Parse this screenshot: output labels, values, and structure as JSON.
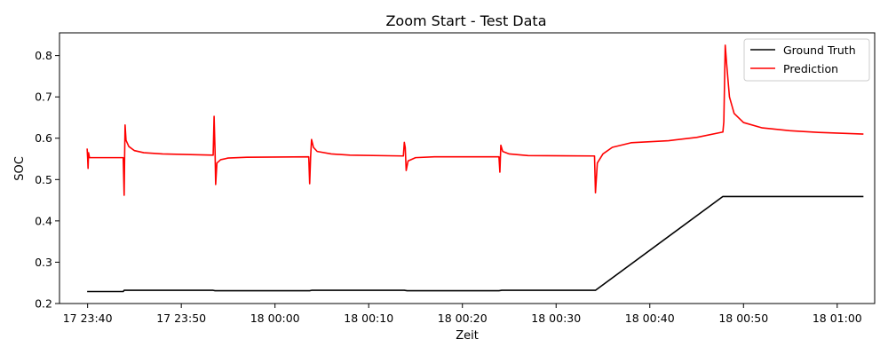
{
  "chart_data": {
    "type": "line",
    "title": "Zoom Start - Test Data",
    "xlabel": "Zeit",
    "ylabel": "SOC",
    "x_is_time": true,
    "xlim": [
      "17 23:37:00",
      "18 01:04:00"
    ],
    "ylim": [
      0.2,
      0.855
    ],
    "x_ticks": [
      "17 23:40",
      "17 23:50",
      "18 00:00",
      "18 00:10",
      "18 00:20",
      "18 00:30",
      "18 00:40",
      "18 00:50",
      "18 01:00"
    ],
    "y_ticks": [
      0.2,
      0.3,
      0.4,
      0.5,
      0.6,
      0.7,
      0.8
    ],
    "grid": false,
    "legend_position": "top-right",
    "series": [
      {
        "name": "Ground Truth",
        "color": "#000000",
        "points": [
          [
            "17 23:39:57",
            0.229
          ],
          [
            "17 23:43:48",
            0.229
          ],
          [
            "17 23:43:54",
            0.232
          ],
          [
            "17 23:53:24",
            0.232
          ],
          [
            "17 23:53:36",
            0.231
          ],
          [
            "18 00:03:42",
            0.231
          ],
          [
            "18 00:03:54",
            0.232
          ],
          [
            "18 00:13:48",
            0.232
          ],
          [
            "18 00:14:06",
            0.231
          ],
          [
            "18 00:23:54",
            0.231
          ],
          [
            "18 00:24:12",
            0.232
          ],
          [
            "18 00:34:12",
            0.232
          ],
          [
            "18 00:47:48",
            0.459
          ],
          [
            "18 01:02:48",
            0.459
          ]
        ]
      },
      {
        "name": "Prediction",
        "color": "#ff0000",
        "points": [
          [
            "17 23:39:57",
            0.575
          ],
          [
            "17 23:40:00",
            0.553
          ],
          [
            "17 23:40:03",
            0.527
          ],
          [
            "17 23:40:06",
            0.565
          ],
          [
            "17 23:40:12",
            0.553
          ],
          [
            "17 23:43:48",
            0.553
          ],
          [
            "17 23:43:54",
            0.462
          ],
          [
            "17 23:43:57",
            0.553
          ],
          [
            "17 23:44:00",
            0.632
          ],
          [
            "17 23:44:06",
            0.595
          ],
          [
            "17 23:44:24",
            0.58
          ],
          [
            "17 23:45:00",
            0.57
          ],
          [
            "17 23:46:00",
            0.565
          ],
          [
            "17 23:48:00",
            0.562
          ],
          [
            "17 23:53:24",
            0.559
          ],
          [
            "17 23:53:30",
            0.653
          ],
          [
            "17 23:53:36",
            0.57
          ],
          [
            "17 23:53:40",
            0.488
          ],
          [
            "17 23:53:48",
            0.54
          ],
          [
            "17 23:54:12",
            0.548
          ],
          [
            "17 23:55:00",
            0.552
          ],
          [
            "17 23:57:00",
            0.554
          ],
          [
            "18 00:03:36",
            0.555
          ],
          [
            "18 00:03:42",
            0.49
          ],
          [
            "18 00:03:48",
            0.555
          ],
          [
            "18 00:03:54",
            0.597
          ],
          [
            "18 00:04:06",
            0.578
          ],
          [
            "18 00:04:30",
            0.568
          ],
          [
            "18 00:06:00",
            0.562
          ],
          [
            "18 00:08:00",
            0.559
          ],
          [
            "18 00:13:42",
            0.557
          ],
          [
            "18 00:13:48",
            0.59
          ],
          [
            "18 00:13:54",
            0.577
          ],
          [
            "18 00:14:00",
            0.522
          ],
          [
            "18 00:14:12",
            0.545
          ],
          [
            "18 00:15:00",
            0.553
          ],
          [
            "18 00:17:00",
            0.555
          ],
          [
            "18 00:23:54",
            0.555
          ],
          [
            "18 00:24:00",
            0.518
          ],
          [
            "18 00:24:06",
            0.583
          ],
          [
            "18 00:24:18",
            0.568
          ],
          [
            "18 00:25:00",
            0.562
          ],
          [
            "18 00:27:00",
            0.558
          ],
          [
            "18 00:34:06",
            0.557
          ],
          [
            "18 00:34:12",
            0.468
          ],
          [
            "18 00:34:24",
            0.54
          ],
          [
            "18 00:35:00",
            0.562
          ],
          [
            "18 00:36:00",
            0.578
          ],
          [
            "18 00:38:00",
            0.589
          ],
          [
            "18 00:42:00",
            0.594
          ],
          [
            "18 00:45:00",
            0.602
          ],
          [
            "18 00:47:48",
            0.615
          ],
          [
            "18 00:47:54",
            0.64
          ],
          [
            "18 00:48:03",
            0.825
          ],
          [
            "18 00:48:12",
            0.78
          ],
          [
            "18 00:48:30",
            0.7
          ],
          [
            "18 00:49:00",
            0.66
          ],
          [
            "18 00:50:00",
            0.638
          ],
          [
            "18 00:52:00",
            0.625
          ],
          [
            "18 00:55:00",
            0.618
          ],
          [
            "18 00:58:00",
            0.614
          ],
          [
            "18 01:02:48",
            0.61
          ]
        ]
      }
    ]
  }
}
